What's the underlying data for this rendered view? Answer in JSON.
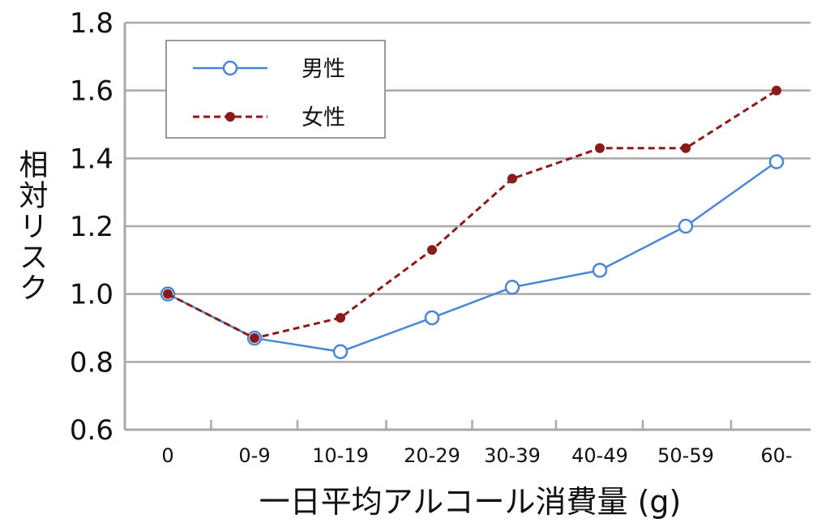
{
  "chart_data": {
    "type": "line",
    "title": "",
    "xlabel": "一日平均アルコール消費量 (g)",
    "ylabel": "相対リスク",
    "categories": [
      "0",
      "0-9",
      "10-19",
      "20-29",
      "30-39",
      "40-49",
      "50-59",
      "60-"
    ],
    "ylim": [
      0.6,
      1.8
    ],
    "yticks": [
      "0.6",
      "0.8",
      "1.0",
      "1.2",
      "1.4",
      "1.6",
      "1.8"
    ],
    "grid": true,
    "legend_position": "top-left",
    "series": [
      {
        "name": "男性",
        "color": "#4a86d8",
        "style": "solid",
        "marker": "open-circle",
        "values": [
          1.0,
          0.87,
          0.83,
          0.93,
          1.02,
          1.07,
          1.2,
          1.39
        ]
      },
      {
        "name": "女性",
        "color": "#8b1a1a",
        "style": "dashed",
        "marker": "filled-circle",
        "values": [
          1.0,
          0.87,
          0.93,
          1.13,
          1.34,
          1.43,
          1.43,
          1.6
        ]
      }
    ]
  }
}
